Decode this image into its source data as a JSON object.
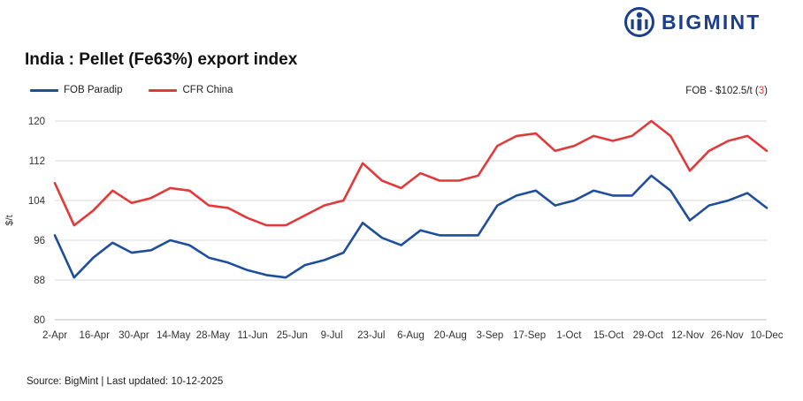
{
  "brand": {
    "name": "BIGMINT",
    "color": "#1b3f8b"
  },
  "title": "India : Pellet (Fe63%) export index",
  "fob_note": {
    "text": "FOB - $102.5/t (",
    "count": "3",
    "close": ")"
  },
  "source": "Source: BigMint | Last updated: 10-12-2025",
  "chart_data": {
    "type": "line",
    "title": "India : Pellet (Fe63%) export index",
    "xlabel": "",
    "ylabel": "$/t",
    "ylim": [
      80,
      120
    ],
    "yticks": [
      80,
      88,
      96,
      104,
      112,
      120
    ],
    "grid": true,
    "legend_position": "top-left",
    "xtick_labels": [
      "2-Apr",
      "16-Apr",
      "30-Apr",
      "14-May",
      "28-May",
      "11-Jun",
      "25-Jun",
      "9-Jul",
      "23-Jul",
      "6-Aug",
      "20-Aug",
      "3-Sep",
      "17-Sep",
      "1-Oct",
      "15-Oct",
      "29-Oct",
      "12-Nov",
      "26-Nov",
      "10-Dec"
    ],
    "series": [
      {
        "name": "FOB Paradip",
        "color": "#1f4e9c",
        "values": [
          97,
          88.5,
          92.5,
          95.5,
          93.5,
          94,
          96,
          95,
          92.5,
          91.5,
          90,
          89,
          88.5,
          91,
          92,
          93.5,
          99.5,
          96.5,
          95,
          98,
          97,
          97,
          97,
          103,
          105,
          106,
          103,
          104,
          106,
          105,
          105,
          109,
          106,
          100,
          103,
          104,
          105.5,
          102.5
        ]
      },
      {
        "name": "CFR China",
        "color": "#e03a3a",
        "values": [
          107.5,
          99,
          102,
          106,
          103.5,
          104.5,
          106.5,
          106,
          103,
          102.5,
          100.5,
          99,
          99,
          101,
          103,
          104,
          111.5,
          108,
          106.5,
          109.5,
          108,
          108,
          109,
          115,
          117,
          117.5,
          114,
          115,
          117,
          116,
          117,
          120,
          117,
          110,
          114,
          116,
          117,
          114
        ]
      }
    ]
  }
}
